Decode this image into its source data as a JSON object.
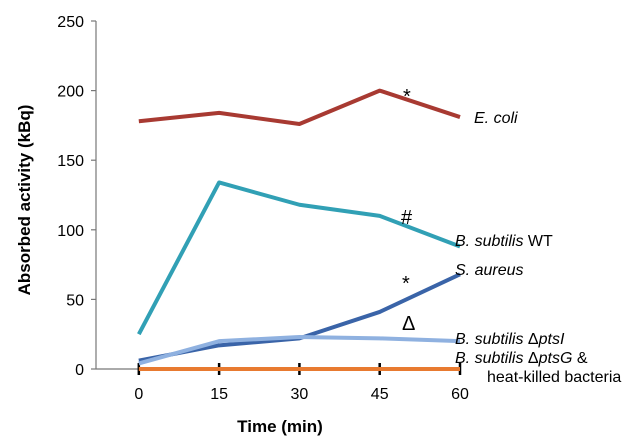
{
  "chart_data": {
    "type": "line",
    "xlabel": "Time (min)",
    "ylabel": "Absorbed activity (kBq)",
    "x": [
      0,
      15,
      30,
      45,
      60
    ],
    "x_tick_labels": [
      "0",
      "15",
      "30",
      "45",
      "60"
    ],
    "y_tick_labels": [
      "0",
      "50",
      "100",
      "150",
      "200",
      "250"
    ],
    "xlim": [
      -8,
      60
    ],
    "ylim": [
      0,
      250
    ],
    "grid": false,
    "legend": "inline labels at right end of lines",
    "series": [
      {
        "id": "ecoli",
        "color": "#a83a32",
        "values": [
          178,
          184,
          176,
          200,
          181
        ],
        "label": [
          {
            "t": "E. coli",
            "italic": true
          }
        ]
      },
      {
        "id": "bsub_wt",
        "color": "#31a0b5",
        "values": [
          25,
          134,
          118,
          110,
          88
        ],
        "label": [
          {
            "t": "B. subtilis",
            "italic": true
          },
          {
            "t": " WT",
            "italic": false
          }
        ]
      },
      {
        "id": "saureus",
        "color": "#3a64a8",
        "values": [
          6,
          17,
          22,
          41,
          68
        ],
        "label": [
          {
            "t": "S. aureus",
            "italic": true
          }
        ]
      },
      {
        "id": "bsub_ptsI",
        "color": "#8fb1e0",
        "values": [
          4,
          20,
          23,
          22,
          20
        ],
        "label": [
          {
            "t": "B. subtilis",
            "italic": true
          },
          {
            "t": " Δ",
            "italic": false
          },
          {
            "t": "ptsI",
            "italic": true
          }
        ]
      },
      {
        "id": "bsub_ptsG",
        "color": "#e87a30",
        "values": [
          0,
          0,
          0,
          0,
          0
        ],
        "label": [
          {
            "t": "B. subtilis",
            "italic": true
          },
          {
            "t": " Δ",
            "italic": false
          },
          {
            "t": "ptsG",
            "italic": true
          },
          {
            "t": " &",
            "italic": false
          }
        ],
        "label_line2": "heat-killed bacteria"
      }
    ],
    "annotations": [
      {
        "text": "*",
        "series": "ecoli"
      },
      {
        "text": "#",
        "series": "bsub_wt"
      },
      {
        "text": "*",
        "series": "saureus"
      },
      {
        "text": "Δ",
        "series": "bsub_ptsI"
      }
    ]
  }
}
